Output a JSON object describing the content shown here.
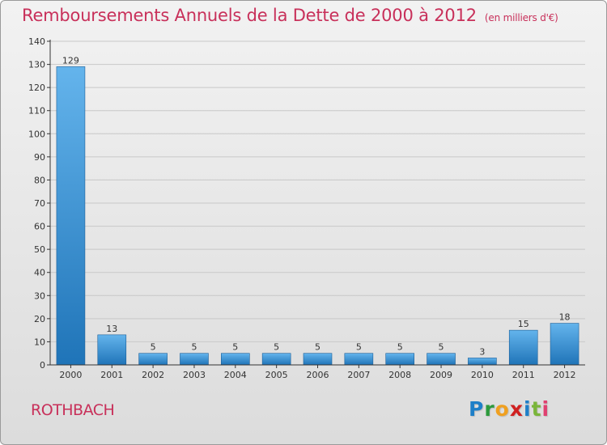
{
  "title": "Remboursements Annuels de la Dette de 2000 à 2012",
  "subtitle": "(en milliers d'€)",
  "town": "ROTHBACH",
  "logo": {
    "letters": [
      "P",
      "r",
      "o",
      "x",
      "i",
      "t",
      "i"
    ]
  },
  "colors": {
    "title": "#c8305a",
    "bar_top": "#64b4ec",
    "bar_bottom": "#1f74b8",
    "axis": "#333333",
    "grid": "#c8c8c8"
  },
  "chart_data": {
    "type": "bar",
    "title": "Remboursements Annuels de la Dette de 2000 à 2012",
    "xlabel": "",
    "ylabel": "",
    "categories": [
      "2000",
      "2001",
      "2002",
      "2003",
      "2004",
      "2005",
      "2006",
      "2007",
      "2008",
      "2009",
      "2010",
      "2011",
      "2012"
    ],
    "values": [
      129,
      13,
      5,
      5,
      5,
      5,
      5,
      5,
      5,
      5,
      3,
      15,
      18
    ],
    "ylim": [
      0,
      140
    ],
    "yticks": [
      0,
      10,
      20,
      30,
      40,
      50,
      60,
      70,
      80,
      90,
      100,
      110,
      120,
      130,
      140
    ],
    "grid": true
  }
}
